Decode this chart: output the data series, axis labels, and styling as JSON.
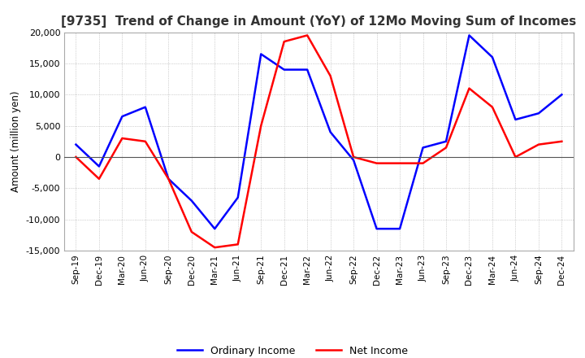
{
  "title": "[9735]  Trend of Change in Amount (YoY) of 12Mo Moving Sum of Incomes",
  "ylabel": "Amount (million yen)",
  "x_labels": [
    "Sep-19",
    "Dec-19",
    "Mar-20",
    "Jun-20",
    "Sep-20",
    "Dec-20",
    "Mar-21",
    "Jun-21",
    "Sep-21",
    "Dec-21",
    "Mar-22",
    "Jun-22",
    "Sep-22",
    "Dec-22",
    "Mar-23",
    "Jun-23",
    "Sep-23",
    "Dec-23",
    "Mar-24",
    "Jun-24",
    "Sep-24",
    "Dec-24"
  ],
  "ordinary_income": [
    2000,
    -1500,
    6500,
    8000,
    -3500,
    -7000,
    -11500,
    -6500,
    16500,
    14000,
    14000,
    4000,
    -500,
    -11500,
    -11500,
    1500,
    2500,
    19500,
    16000,
    6000,
    7000,
    10000
  ],
  "net_income": [
    0,
    -3500,
    3000,
    2500,
    -3500,
    -12000,
    -14500,
    -14000,
    5000,
    18500,
    19500,
    13000,
    0,
    -1000,
    -1000,
    -1000,
    1500,
    11000,
    8000,
    0,
    2000,
    2500
  ],
  "ordinary_color": "#0000ff",
  "net_color": "#ff0000",
  "ylim": [
    -15000,
    20000
  ],
  "yticks": [
    -15000,
    -10000,
    -5000,
    0,
    5000,
    10000,
    15000,
    20000
  ],
  "background_color": "#ffffff",
  "grid_color": "#aaaaaa",
  "title_fontsize": 11,
  "legend_labels": [
    "Ordinary Income",
    "Net Income"
  ]
}
